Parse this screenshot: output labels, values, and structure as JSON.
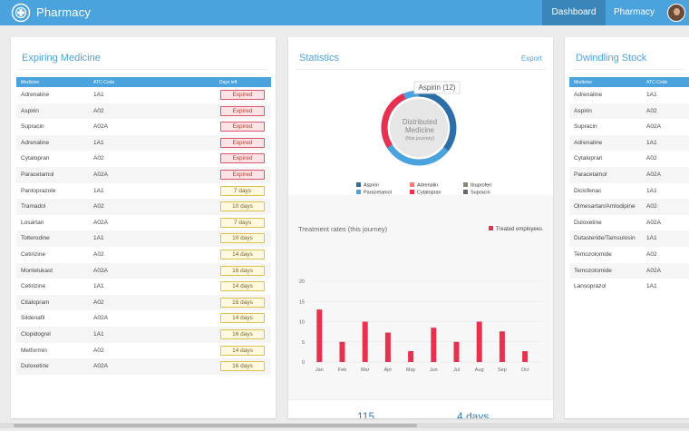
{
  "app": {
    "title": "Pharmacy"
  },
  "nav": {
    "dashboard": "Dashboard",
    "pharmacy": "Pharmacy"
  },
  "expiring": {
    "title": "Expiring Medicine",
    "headers": [
      "Medicine",
      "ATC-Code",
      "Days left"
    ],
    "rows": [
      {
        "medicine": "Adrenaline",
        "atc": "1A1",
        "days": "Expired"
      },
      {
        "medicine": "Aspirin",
        "atc": "A02",
        "days": "Expired"
      },
      {
        "medicine": "Supracin",
        "atc": "A02A",
        "days": "Expired"
      },
      {
        "medicine": "Adrenaline",
        "atc": "1A1",
        "days": "Expired"
      },
      {
        "medicine": "Cytalopran",
        "atc": "A02",
        "days": "Expired"
      },
      {
        "medicine": "Paracetamol",
        "atc": "A02A",
        "days": "Expired"
      },
      {
        "medicine": "Pantoprazole",
        "atc": "1A1",
        "days": "7 days"
      },
      {
        "medicine": "Tramadol",
        "atc": "A02",
        "days": "10 days"
      },
      {
        "medicine": "Losartan",
        "atc": "A02A",
        "days": "7 days"
      },
      {
        "medicine": "Tolterodine",
        "atc": "1A1",
        "days": "10 days"
      },
      {
        "medicine": "Cetirizine",
        "atc": "A02",
        "days": "14 days"
      },
      {
        "medicine": "Montelukast",
        "atc": "A02A",
        "days": "16 days"
      },
      {
        "medicine": "Cetirizine",
        "atc": "1A1",
        "days": "14 days"
      },
      {
        "medicine": "Citalopram",
        "atc": "A02",
        "days": "16 days"
      },
      {
        "medicine": "Sildenafil",
        "atc": "A02A",
        "days": "14 days"
      },
      {
        "medicine": "Clopidogrel",
        "atc": "1A1",
        "days": "16 days"
      },
      {
        "medicine": "Metformin",
        "atc": "A02",
        "days": "14 days"
      },
      {
        "medicine": "Duloxetine",
        "atc": "A02A",
        "days": "16 days"
      }
    ]
  },
  "stats": {
    "title": "Statistics",
    "export": "Export",
    "donut": {
      "center_line1": "Distributed",
      "center_line2": "Medicine",
      "center_line3": "(this journey)",
      "tooltip": "Aspirin (12)",
      "legend": [
        {
          "name": "Aspirin",
          "color": "#2c6ea8"
        },
        {
          "name": "Adrenalin",
          "color": "#f08080"
        },
        {
          "name": "Ibuprofen",
          "color": "#8a8a6a"
        },
        {
          "name": "Paracetamol",
          "color": "#4ba3dd"
        },
        {
          "name": "Cytalopran",
          "color": "#e8304f"
        },
        {
          "name": "Supracin",
          "color": "#666666"
        }
      ]
    },
    "bottom_values": [
      "115",
      "4 days"
    ]
  },
  "chart_data": {
    "type": "bar",
    "title": "Treatment rates (this journey)",
    "series": [
      {
        "name": "Treated employees",
        "color": "#e8304f",
        "values": [
          13,
          5,
          10,
          7.3,
          2.7,
          8.5,
          5,
          10,
          7.6,
          2.7
        ]
      }
    ],
    "categories": [
      "Jan",
      "Feb",
      "Mar",
      "Apr",
      "May",
      "Jun",
      "Jul",
      "Aug",
      "Sep",
      "Oct"
    ],
    "ylim": [
      0,
      20
    ],
    "yticks": [
      "0",
      "5",
      "10",
      "15",
      "20"
    ],
    "grid": true
  },
  "dwindling": {
    "title": "Dwindling Stock",
    "headers": [
      "Medicine",
      "ATC-Code"
    ],
    "rows": [
      {
        "medicine": "Adrenaline",
        "atc": "1A1"
      },
      {
        "medicine": "Aspirin",
        "atc": "A02"
      },
      {
        "medicine": "Supracin",
        "atc": "A02A"
      },
      {
        "medicine": "Adrenaline",
        "atc": "1A1"
      },
      {
        "medicine": "Cytalopran",
        "atc": "A02"
      },
      {
        "medicine": "Paracetamol",
        "atc": "A02A"
      },
      {
        "medicine": "Diclofenac",
        "atc": "1A1"
      },
      {
        "medicine": "Olmesartan/Amlodipine",
        "atc": "A02"
      },
      {
        "medicine": "Duloxetine",
        "atc": "A02A"
      },
      {
        "medicine": "Dutasteride/Tamsulosin",
        "atc": "1A1"
      },
      {
        "medicine": "Temozolomide",
        "atc": "A02"
      },
      {
        "medicine": "Temozolomide",
        "atc": "A02A"
      },
      {
        "medicine": "Lansoprazol",
        "atc": "1A1"
      }
    ]
  }
}
